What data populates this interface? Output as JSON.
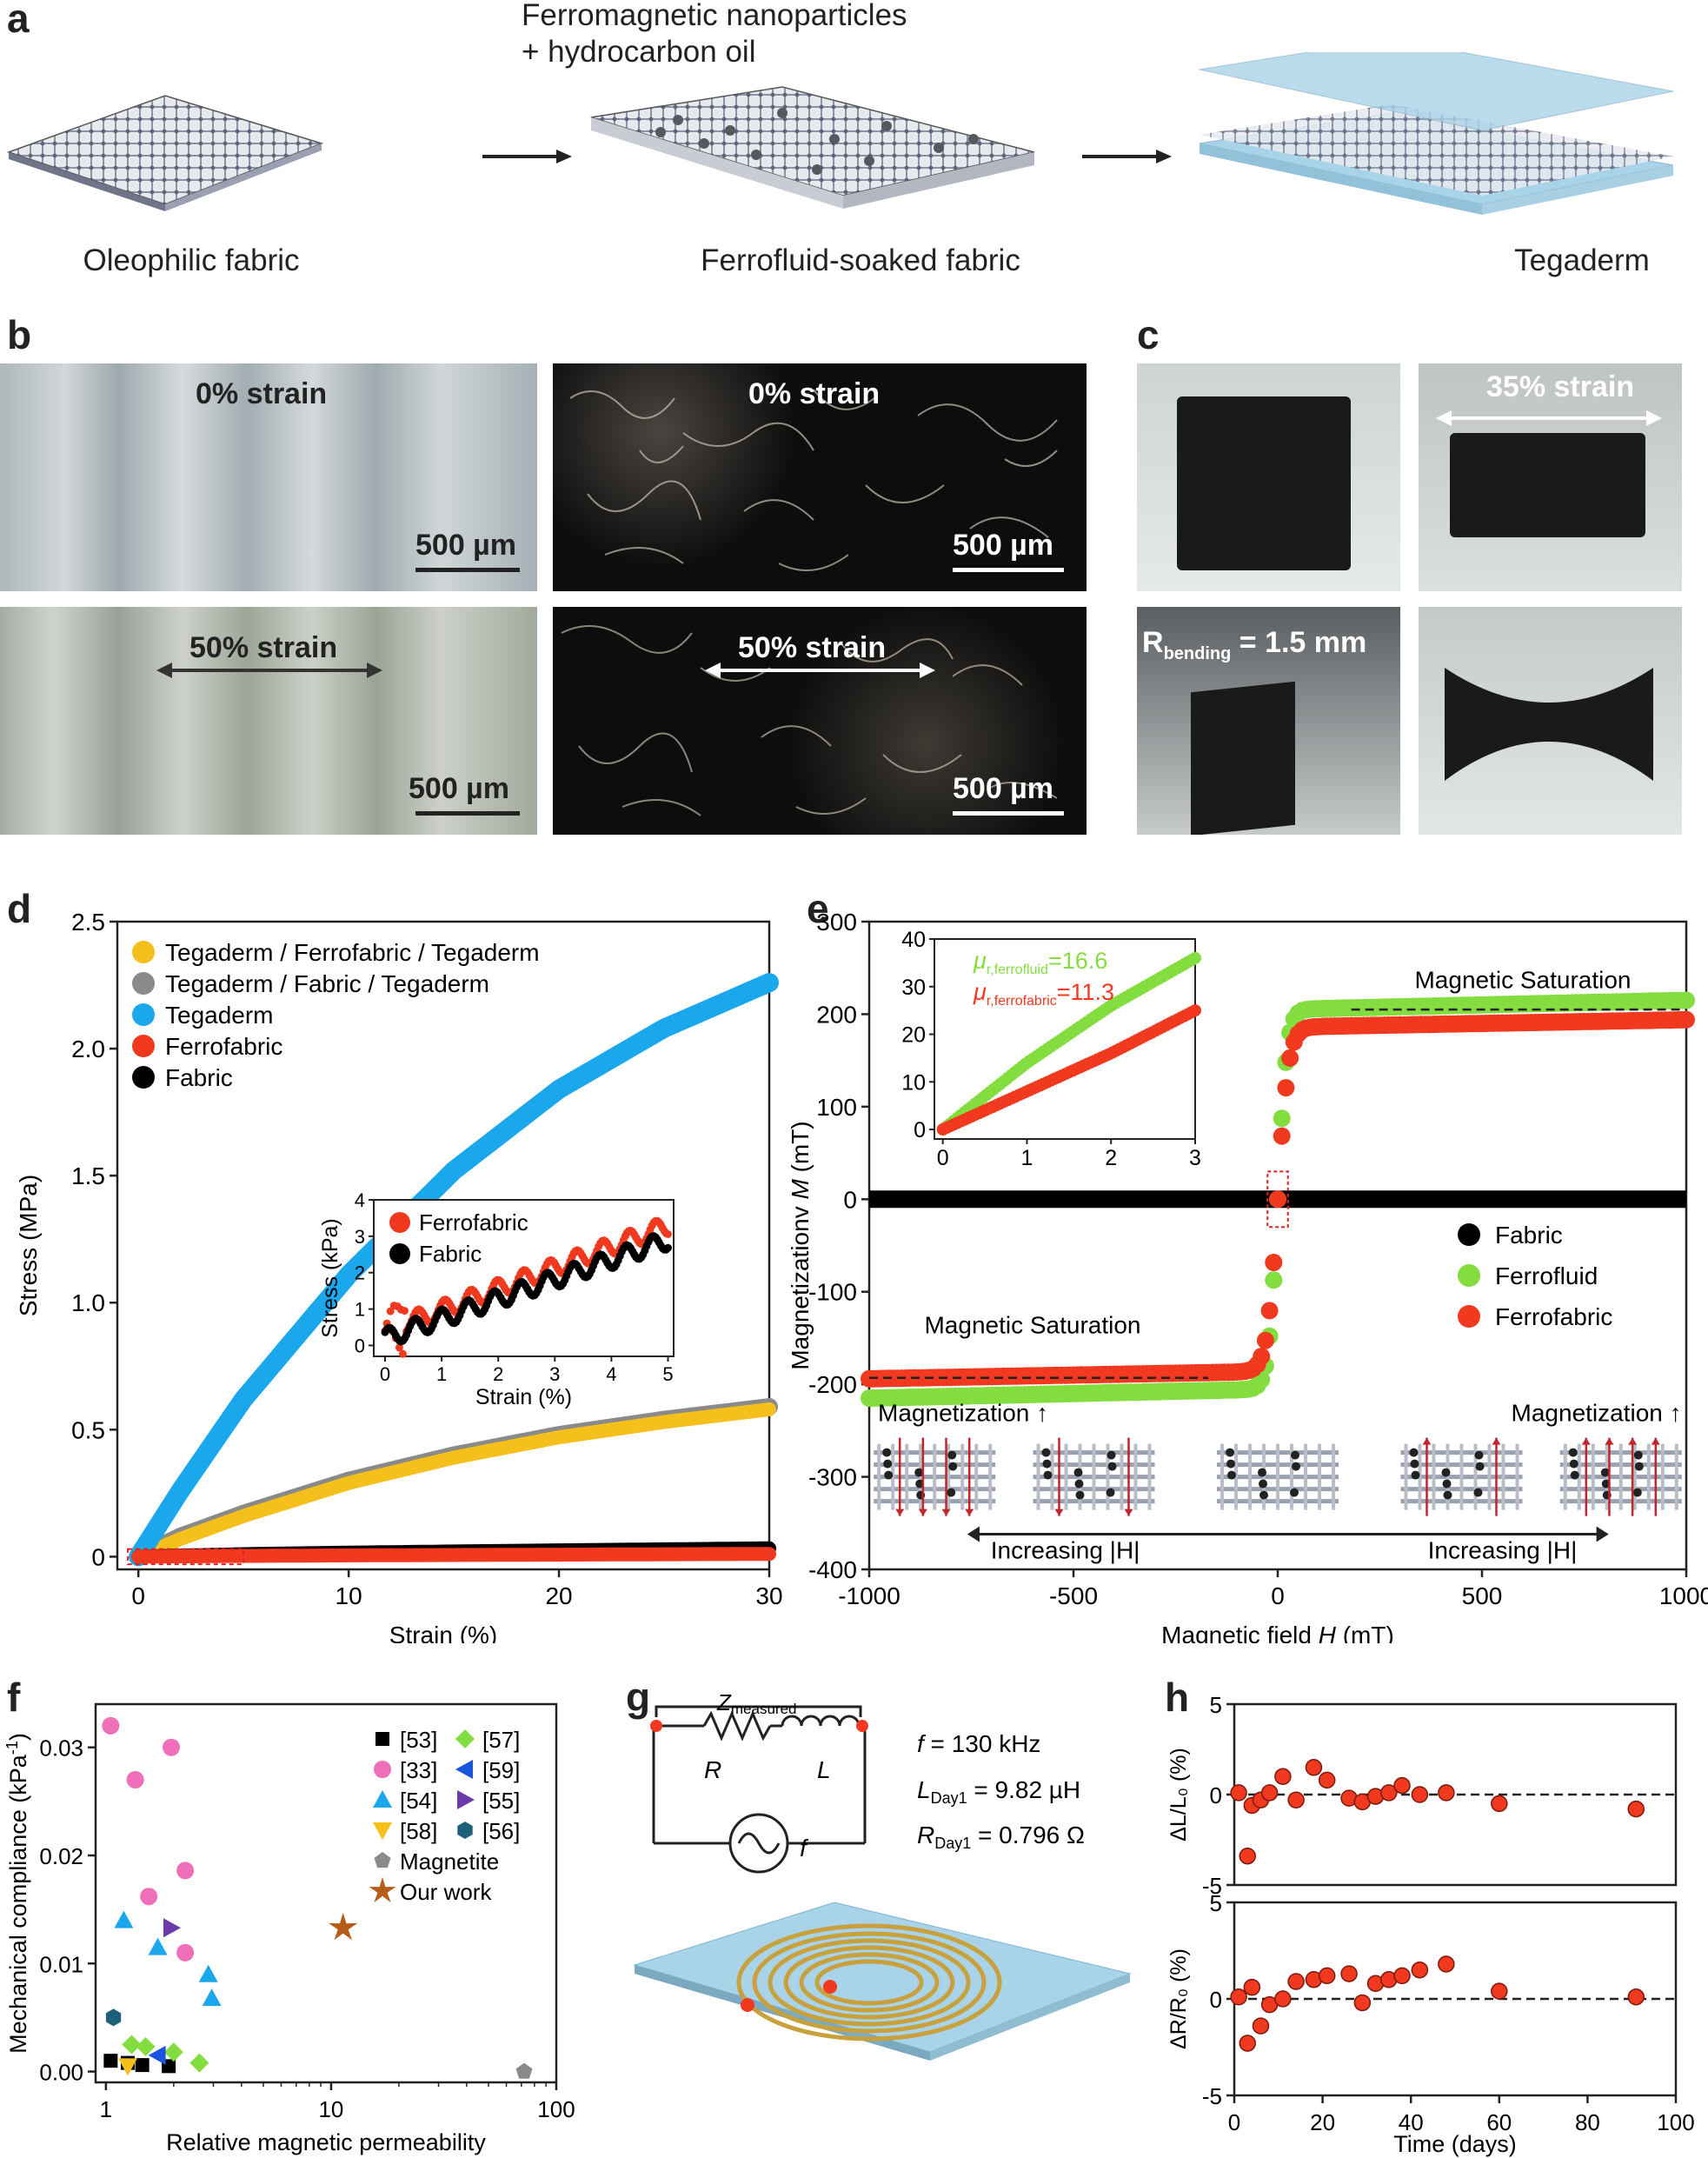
{
  "panel_a": {
    "label": "a",
    "caption_top": [
      "Ferromagnetic nanoparticles",
      "+ hydrocarbon oil"
    ],
    "steps": [
      "Oleophilic fabric",
      "Ferrofluid-soaked fabric",
      "Tegaderm"
    ]
  },
  "panel_b": {
    "label": "b",
    "images": [
      {
        "strain": "0% strain",
        "scale": "500 µm"
      },
      {
        "strain": "0% strain",
        "scale": "500 µm"
      },
      {
        "strain": "50% strain",
        "scale": "500 µm"
      },
      {
        "strain": "50% strain",
        "scale": "500 µm"
      }
    ]
  },
  "panel_c": {
    "label": "c",
    "strain_label": "35% strain",
    "bending_main": "R",
    "bending_sub": "bending",
    "bending_value": " = 1.5 mm"
  },
  "colors": {
    "tegaderm": "#1aa7ec",
    "gray": "#8a8a8a",
    "yellow": "#f5bf1c",
    "red": "#f0391f",
    "black": "#000000",
    "green": "#84dd3e",
    "blue_sheet": "#a9d3e8"
  },
  "chart_data": [
    {
      "panel": "d",
      "type": "line",
      "xlabel": "Strain (%)",
      "ylabel": "Stress (MPa)",
      "xlim": [
        -1,
        30
      ],
      "ylim": [
        -0.05,
        2.5
      ],
      "xticks": [
        0,
        10,
        20,
        30
      ],
      "yticks": [
        0,
        0.5,
        1.0,
        1.5,
        2.0,
        2.5
      ],
      "ytick_labels": [
        "0",
        "0.5",
        "1.0",
        "1.5",
        "2.0",
        "2.5"
      ],
      "series": [
        {
          "name": "Tegaderm / Ferrofabric / Tegaderm",
          "color": "#f5bf1c",
          "x": [
            0,
            2,
            5,
            10,
            15,
            20,
            25,
            30
          ],
          "y": [
            0,
            0.07,
            0.16,
            0.29,
            0.39,
            0.47,
            0.53,
            0.58
          ]
        },
        {
          "name": "Tegaderm / Fabric / Tegaderm",
          "color": "#8a8a8a",
          "x": [
            0,
            2,
            5,
            10,
            15,
            20,
            25,
            30
          ],
          "y": [
            0,
            0.08,
            0.17,
            0.3,
            0.4,
            0.48,
            0.54,
            0.59
          ]
        },
        {
          "name": "Tegaderm",
          "color": "#1aa7ec",
          "x": [
            0,
            2,
            5,
            10,
            15,
            20,
            25,
            30
          ],
          "y": [
            0,
            0.26,
            0.62,
            1.11,
            1.52,
            1.84,
            2.08,
            2.26
          ]
        },
        {
          "name": "Ferrofabric",
          "color": "#f0391f",
          "x": [
            0,
            5,
            10,
            20,
            30
          ],
          "y": [
            0,
            0.003,
            0.005,
            0.008,
            0.011
          ]
        },
        {
          "name": "Fabric",
          "color": "#000000",
          "x": [
            0,
            5,
            10,
            20,
            30
          ],
          "y": [
            0,
            0.01,
            0.016,
            0.025,
            0.033
          ]
        }
      ],
      "inset": {
        "xlabel": "Strain (%)",
        "ylabel": "Stress (kPa)",
        "xlim": [
          -0.2,
          5.1
        ],
        "ylim": [
          -0.3,
          4
        ],
        "xticks": [
          0,
          1,
          2,
          3,
          4,
          5
        ],
        "yticks": [
          0,
          1,
          2,
          3,
          4
        ],
        "series": [
          {
            "name": "Ferrofabric",
            "color": "#f0391f",
            "x0": 0,
            "x1": 5,
            "y0": 0.4,
            "y1": 3.3
          },
          {
            "name": "Fabric",
            "color": "#000000",
            "x0": 0,
            "x1": 5,
            "y0": 0.2,
            "y1": 2.9
          }
        ]
      }
    },
    {
      "panel": "e",
      "type": "scatter",
      "xlabel_main": "Magnetic field ",
      "xlabel_var": "H",
      "xlabel_unit": " (mT)",
      "ylabel_main": "Magnetizationv ",
      "ylabel_var": "M",
      "ylabel_unit": " (mT)",
      "xlim": [
        -1000,
        1000
      ],
      "ylim": [
        -400,
        300
      ],
      "xticks": [
        -1000,
        -500,
        0,
        500,
        1000
      ],
      "yticks": [
        -400,
        -300,
        -200,
        -100,
        0,
        100,
        200,
        300
      ],
      "series": [
        {
          "name": "Fabric",
          "color": "#000000",
          "Ms": 0
        },
        {
          "name": "Ferrofluid",
          "color": "#84dd3e",
          "Ms": 205
        },
        {
          "name": "Ferrofabric",
          "color": "#f0391f",
          "Ms": 186
        }
      ],
      "annotations": [
        "Magnetic Saturation",
        "Magnetic Saturation",
        "Magnetization ↑",
        "Magnetization ↑",
        "Increasing |H|",
        "Increasing |H|"
      ],
      "inset": {
        "xlim": [
          -0.1,
          3
        ],
        "ylim": [
          -2,
          40
        ],
        "xticks": [
          0,
          1,
          2,
          3
        ],
        "yticks": [
          0,
          10,
          20,
          30,
          40
        ],
        "ferrofluid_label": "μ",
        "ferrofluid_sub": "r,ferrofluid",
        "ferrofluid_value": "=16.6",
        "ferrofabric_label": "μ",
        "ferrofabric_sub": "r,ferrofabric",
        "ferrofabric_value": "=11.3",
        "series": [
          {
            "name": "Ferrofluid",
            "color": "#84dd3e",
            "x": [
              0,
              1,
              2,
              3
            ],
            "y": [
              0,
              14,
              26,
              36
            ]
          },
          {
            "name": "Ferrofabric",
            "color": "#f0391f",
            "x": [
              0,
              1,
              2,
              3
            ],
            "y": [
              0,
              8,
              16,
              25
            ]
          }
        ]
      }
    },
    {
      "panel": "f",
      "type": "scatter",
      "xlabel": "Relative magnetic permeability",
      "ylabel": "Mechanical compliance (kPa",
      "ylabel_sup": "-1",
      "ylabel_end": ")",
      "xscale": "log",
      "xlim": [
        0.9,
        100
      ],
      "ylim": [
        -0.001,
        0.034
      ],
      "xticks": [
        1,
        10,
        100
      ],
      "yticks": [
        0,
        0.01,
        0.02,
        0.03
      ],
      "ytick_labels": [
        "0.00",
        "0.01",
        "0.02",
        "0.03"
      ],
      "series": [
        {
          "name": "[53]",
          "marker": "square",
          "color": "#000000",
          "x": [
            1.05,
            1.25,
            1.45,
            1.9
          ],
          "y": [
            0.001,
            0.0008,
            0.0006,
            0.0005
          ]
        },
        {
          "name": "[57]",
          "marker": "diamond",
          "color": "#84dd3e",
          "x": [
            1.3,
            1.5,
            2.0,
            2.6
          ],
          "y": [
            0.0025,
            0.0023,
            0.0018,
            0.0008
          ]
        },
        {
          "name": "[33]",
          "marker": "circle",
          "color": "#f06fb9",
          "x": [
            1.05,
            1.35,
            1.55,
            1.95,
            2.25,
            2.25
          ],
          "y": [
            0.032,
            0.027,
            0.0162,
            0.03,
            0.0186,
            0.011
          ]
        },
        {
          "name": "[59]",
          "marker": "tri-left",
          "color": "#1a55e0",
          "x": [
            1.7
          ],
          "y": [
            0.0015
          ]
        },
        {
          "name": "[54]",
          "marker": "tri-up",
          "color": "#1aa7ec",
          "x": [
            1.2,
            1.7,
            2.85,
            2.95
          ],
          "y": [
            0.014,
            0.0115,
            0.009,
            0.0068
          ]
        },
        {
          "name": "[55]",
          "marker": "tri-right",
          "color": "#6a3aa8",
          "x": [
            1.95
          ],
          "y": [
            0.0133
          ]
        },
        {
          "name": "[58]",
          "marker": "tri-down",
          "color": "#f5bf1c",
          "x": [
            1.25
          ],
          "y": [
            0.0005
          ]
        },
        {
          "name": "[56]",
          "marker": "hexagon",
          "color": "#1e5f7a",
          "x": [
            1.08
          ],
          "y": [
            0.005
          ]
        },
        {
          "name": "Magnetite",
          "marker": "pentagon",
          "color": "#8a8a8a",
          "x": [
            72
          ],
          "y": [
            0.0
          ]
        },
        {
          "name": "Our work",
          "marker": "star",
          "color": "#b55c1b",
          "x": [
            11.3
          ],
          "y": [
            0.0133
          ]
        }
      ]
    },
    {
      "panel": "h",
      "type": "scatter",
      "xlabel": "Time (days)",
      "xlim": [
        0,
        100
      ],
      "xticks": [
        0,
        20,
        40,
        60,
        80,
        100
      ],
      "top": {
        "ylabel": "ΔL/L₀ (%)",
        "ylim": [
          -5,
          5
        ],
        "yticks": [
          -5,
          0,
          5
        ],
        "x": [
          1,
          3,
          4,
          6,
          8,
          11,
          14,
          18,
          21,
          26,
          29,
          32,
          35,
          38,
          42,
          48,
          60,
          91
        ],
        "y": [
          0.1,
          -3.4,
          -0.6,
          -0.3,
          0.1,
          1.0,
          -0.3,
          1.5,
          0.8,
          -0.2,
          -0.4,
          -0.1,
          0.1,
          0.5,
          0.0,
          0.1,
          -0.5,
          -0.8
        ]
      },
      "bottom": {
        "ylabel": "ΔR/R₀ (%)",
        "ylim": [
          -5,
          5
        ],
        "yticks": [
          -5,
          0,
          5
        ],
        "x": [
          1,
          3,
          4,
          6,
          8,
          11,
          14,
          18,
          21,
          26,
          29,
          32,
          35,
          38,
          42,
          48,
          60,
          91
        ],
        "y": [
          0.1,
          -2.3,
          0.6,
          -1.4,
          -0.3,
          0.0,
          0.9,
          1.0,
          1.2,
          1.3,
          -0.2,
          0.8,
          1.0,
          1.2,
          1.5,
          1.8,
          0.4,
          0.1
        ]
      }
    }
  ],
  "panel_d": {
    "label": "d"
  },
  "panel_e": {
    "label": "e"
  },
  "panel_f": {
    "label": "f"
  },
  "panel_g": {
    "label": "g",
    "z": "Z",
    "z_sub": "measured",
    "r": "R",
    "l": "L",
    "f_src": "f",
    "freq_var": "f",
    "freq_value": " = 130 kHz",
    "l_var": "L",
    "l_sub": "Day1",
    "l_value": " = 9.82 µH",
    "r_var": "R",
    "r_sub": "Day1",
    "r_value": " = 0.796 Ω"
  },
  "panel_h": {
    "label": "h"
  }
}
